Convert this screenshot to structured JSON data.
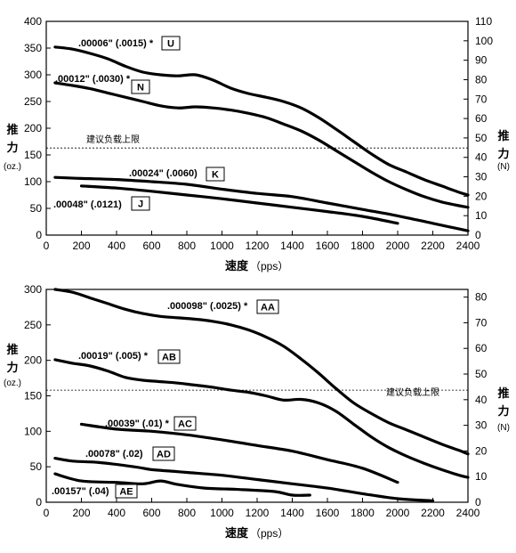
{
  "chart_data": [
    {
      "type": "line",
      "id": "top",
      "ylabel": "推力",
      "ylabel_unit": "(oz.)",
      "y2label": "推力",
      "y2label_unit": "(N)",
      "xlabel": "速度",
      "xlabel_unit": "（pps）",
      "xlim": [
        0,
        2400
      ],
      "ylim": [
        0,
        400
      ],
      "y2lim": [
        0,
        110
      ],
      "xticks": [
        0,
        200,
        400,
        600,
        800,
        1000,
        1200,
        1400,
        1600,
        1800,
        2000,
        2200,
        2400
      ],
      "yticks": [
        0,
        50,
        100,
        150,
        200,
        250,
        300,
        350,
        400
      ],
      "y2ticks": [
        0,
        10,
        20,
        30,
        40,
        50,
        60,
        70,
        80,
        90,
        100,
        110
      ],
      "reference_line": {
        "y": 163,
        "label": "建议负载上限"
      },
      "series": [
        {
          "name": ".00006\" (.0015) *",
          "tag": "U",
          "x": [
            50,
            150,
            250,
            350,
            450,
            550,
            650,
            750,
            850,
            950,
            1050,
            1150,
            1250,
            1350,
            1450,
            1550,
            1650,
            1750,
            1850,
            1950,
            2050,
            2150,
            2250,
            2350,
            2400
          ],
          "y": [
            352,
            348,
            340,
            330,
            316,
            305,
            300,
            298,
            300,
            290,
            275,
            265,
            258,
            250,
            238,
            220,
            198,
            175,
            152,
            132,
            118,
            104,
            92,
            80,
            75
          ]
        },
        {
          "name": ".00012\" (.0030) *",
          "tag": "N",
          "x": [
            50,
            150,
            250,
            350,
            450,
            550,
            650,
            750,
            850,
            950,
            1050,
            1150,
            1250,
            1350,
            1450,
            1550,
            1650,
            1750,
            1850,
            1950,
            2050,
            2150,
            2250,
            2350,
            2400
          ],
          "y": [
            285,
            280,
            274,
            266,
            258,
            250,
            242,
            238,
            240,
            238,
            234,
            228,
            220,
            208,
            195,
            178,
            158,
            138,
            118,
            100,
            85,
            72,
            62,
            55,
            52
          ]
        },
        {
          "name": ".00024\" (.0060)",
          "tag": "K",
          "x": [
            50,
            200,
            400,
            600,
            800,
            1000,
            1200,
            1400,
            1600,
            1800,
            2000,
            2200,
            2400
          ],
          "y": [
            108,
            106,
            104,
            100,
            95,
            86,
            78,
            72,
            60,
            48,
            36,
            22,
            8
          ]
        },
        {
          "name": ".00048\" (.0121)",
          "tag": "J",
          "x": [
            200,
            400,
            600,
            800,
            1000,
            1200,
            1400,
            1600,
            1800,
            2000
          ],
          "y": [
            92,
            88,
            82,
            75,
            68,
            60,
            52,
            44,
            35,
            22
          ]
        }
      ]
    },
    {
      "type": "line",
      "id": "bottom",
      "ylabel": "推力",
      "ylabel_unit": "(oz.)",
      "y2label": "推力",
      "y2label_unit": "(N)",
      "xlabel": "速度",
      "xlabel_unit": "（pps）",
      "xlim": [
        0,
        2400
      ],
      "ylim": [
        0,
        300
      ],
      "y2lim": [
        0,
        83
      ],
      "xticks": [
        0,
        200,
        400,
        600,
        800,
        1000,
        1200,
        1400,
        1600,
        1800,
        2000,
        2200,
        2400
      ],
      "yticks": [
        0,
        50,
        100,
        150,
        200,
        250,
        300
      ],
      "y2ticks": [
        0,
        10,
        20,
        30,
        40,
        50,
        60,
        70,
        80
      ],
      "reference_line": {
        "y": 158,
        "label": "建议负载上限"
      },
      "series": [
        {
          "name": ".000098\" (.0025) *",
          "tag": "AA",
          "x": [
            50,
            150,
            250,
            350,
            450,
            550,
            650,
            750,
            850,
            950,
            1050,
            1150,
            1250,
            1350,
            1450,
            1550,
            1650,
            1750,
            1850,
            1950,
            2050,
            2150,
            2250,
            2350,
            2400
          ],
          "y": [
            300,
            296,
            288,
            280,
            272,
            266,
            262,
            260,
            258,
            255,
            250,
            243,
            233,
            220,
            202,
            182,
            160,
            140,
            125,
            112,
            102,
            92,
            82,
            73,
            68
          ]
        },
        {
          "name": ".00019\" (.005) *",
          "tag": "AB",
          "x": [
            50,
            150,
            250,
            350,
            450,
            550,
            650,
            750,
            850,
            950,
            1050,
            1150,
            1250,
            1350,
            1450,
            1550,
            1650,
            1750,
            1850,
            1950,
            2050,
            2150,
            2250,
            2350,
            2400
          ],
          "y": [
            201,
            196,
            192,
            185,
            176,
            172,
            170,
            168,
            165,
            162,
            158,
            155,
            150,
            144,
            145,
            140,
            128,
            110,
            92,
            77,
            65,
            55,
            46,
            38,
            35
          ]
        },
        {
          "name": ".00039\" (.01) *",
          "tag": "AC",
          "x": [
            200,
            400,
            600,
            800,
            1000,
            1200,
            1400,
            1600,
            1800,
            2000
          ],
          "y": [
            110,
            103,
            100,
            95,
            88,
            80,
            72,
            60,
            48,
            28
          ]
        },
        {
          "name": ".00078\" (.02)",
          "tag": "AD",
          "x": [
            50,
            150,
            300,
            500,
            600,
            700,
            800,
            1000,
            1200,
            1400,
            1600,
            1800,
            2000,
            2200
          ],
          "y": [
            62,
            58,
            56,
            50,
            46,
            44,
            42,
            38,
            32,
            26,
            20,
            12,
            5,
            2
          ]
        },
        {
          "name": ".00157\" (.04)",
          "tag": "AE",
          "x": [
            50,
            200,
            400,
            550,
            650,
            750,
            900,
            1100,
            1300,
            1400,
            1500
          ],
          "y": [
            40,
            30,
            28,
            26,
            30,
            25,
            20,
            18,
            15,
            10,
            10
          ]
        }
      ]
    }
  ]
}
